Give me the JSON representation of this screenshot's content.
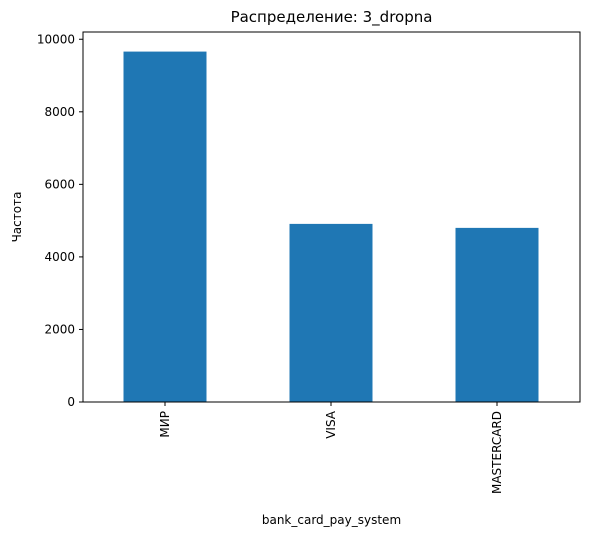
{
  "chart_data": {
    "type": "bar",
    "title": "Распределение: 3_dropna",
    "xlabel": "bank_card_pay_system",
    "ylabel": "Частота",
    "categories": [
      "МИР",
      "VISA",
      "MASTERCARD"
    ],
    "values": [
      9660,
      4910,
      4800
    ],
    "ylim": [
      0,
      10200
    ],
    "yticks": [
      0,
      2000,
      4000,
      6000,
      8000,
      10000
    ],
    "ytick_labels": [
      "0",
      "2000",
      "4000",
      "6000",
      "8000",
      "10000"
    ],
    "grid": false,
    "legend": "none",
    "bar_color": "#1f77b4",
    "xtick_rotation": "vertical"
  }
}
